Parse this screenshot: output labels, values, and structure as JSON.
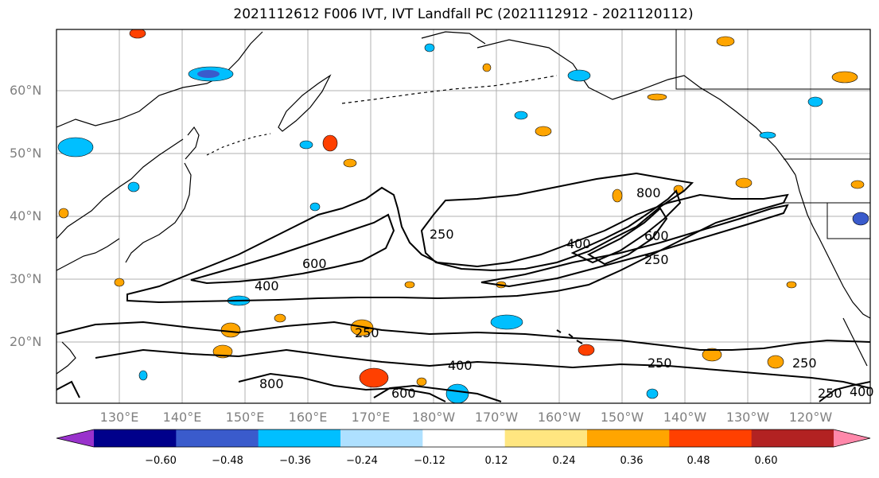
{
  "title": "2021112612 F006 IVT, IVT Landfall PC (2021112912 - 2021120112)",
  "lat_labels": [
    "60°N",
    "50°N",
    "40°N",
    "30°N",
    "20°N"
  ],
  "lon_labels": [
    "130°E",
    "140°E",
    "150°E",
    "160°E",
    "170°E",
    "180°W",
    "170°W",
    "160°W",
    "150°W",
    "140°W",
    "130°W",
    "120°W"
  ],
  "contour_labels": [
    "250",
    "400",
    "600",
    "800",
    "250",
    "400",
    "600",
    "800",
    "250",
    "600",
    "400",
    "250",
    "250",
    "250",
    "400"
  ],
  "colorbar": {
    "colors": [
      "#9932cc",
      "#00008b",
      "#3a5bcc",
      "#00bfff",
      "#aee0ff",
      "#ffffff",
      "#ffe680",
      "#ffa500",
      "#ff4000",
      "#b22222",
      "#ff88aa"
    ],
    "ticks": [
      "−0.60",
      "−0.48",
      "−0.36",
      "−0.24",
      "−0.12",
      "0.12",
      "0.24",
      "0.36",
      "0.48",
      "0.60"
    ]
  },
  "legend_symbols": {
    "extend": "both"
  }
}
